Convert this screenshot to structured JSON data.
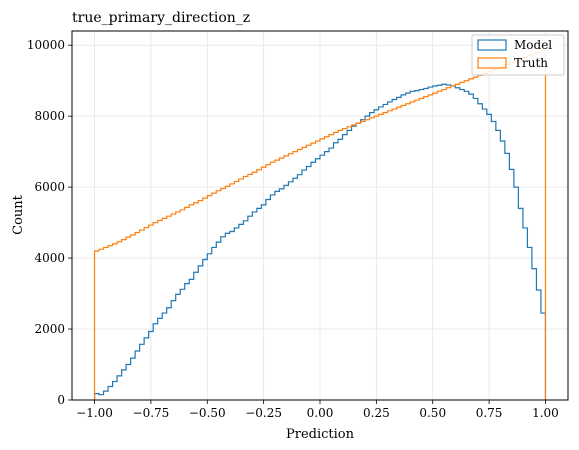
{
  "chart_data": {
    "type": "histogram",
    "title": "true_primary_direction_z",
    "xlabel": "Prediction",
    "ylabel": "Count",
    "xlim": [
      -1.1,
      1.1
    ],
    "ylim": [
      0,
      10400
    ],
    "grid": true,
    "legend_placement": "top-right",
    "x_ticks": [
      -1.0,
      -0.75,
      -0.5,
      -0.25,
      0.0,
      0.25,
      0.5,
      0.75,
      1.0
    ],
    "x_tick_labels": [
      "−1.00",
      "−0.75",
      "−0.50",
      "−0.25",
      "0.00",
      "0.25",
      "0.50",
      "0.75",
      "1.00"
    ],
    "y_ticks": [
      0,
      2000,
      4000,
      6000,
      8000,
      10000
    ],
    "y_tick_labels": [
      "0",
      "2000",
      "4000",
      "6000",
      "8000",
      "10000"
    ],
    "bin_edges_range": [
      -1.0,
      1.0
    ],
    "n_bins": 100,
    "series": [
      {
        "name": "Model",
        "color": "#1f77b4",
        "values": [
          180,
          150,
          250,
          380,
          520,
          680,
          850,
          1000,
          1180,
          1380,
          1570,
          1750,
          1930,
          2150,
          2300,
          2450,
          2600,
          2800,
          2980,
          3120,
          3280,
          3400,
          3600,
          3780,
          3960,
          4120,
          4300,
          4450,
          4600,
          4700,
          4750,
          4850,
          4950,
          5050,
          5180,
          5300,
          5400,
          5500,
          5650,
          5780,
          5880,
          5950,
          6050,
          6150,
          6250,
          6350,
          6480,
          6580,
          6700,
          6800,
          6900,
          7000,
          7100,
          7250,
          7350,
          7480,
          7600,
          7720,
          7800,
          7900,
          8000,
          8100,
          8180,
          8260,
          8330,
          8400,
          8470,
          8530,
          8600,
          8650,
          8700,
          8720,
          8750,
          8780,
          8820,
          8850,
          8870,
          8900,
          8880,
          8850,
          8800,
          8750,
          8700,
          8620,
          8500,
          8350,
          8200,
          8050,
          7850,
          7600,
          7300,
          6950,
          6500,
          6000,
          5400,
          4850,
          4300,
          3700,
          3100,
          2450
        ]
      },
      {
        "name": "Truth",
        "color": "#ff7f0e",
        "values": [
          4200,
          4250,
          4300,
          4350,
          4400,
          4460,
          4520,
          4590,
          4650,
          4720,
          4790,
          4860,
          4930,
          5000,
          5060,
          5120,
          5180,
          5240,
          5300,
          5360,
          5430,
          5500,
          5560,
          5620,
          5690,
          5760,
          5830,
          5900,
          5960,
          6020,
          6090,
          6160,
          6230,
          6300,
          6360,
          6420,
          6490,
          6560,
          6630,
          6700,
          6760,
          6820,
          6880,
          6940,
          7000,
          7060,
          7120,
          7180,
          7240,
          7300,
          7360,
          7420,
          7480,
          7540,
          7600,
          7650,
          7700,
          7750,
          7800,
          7850,
          7900,
          7950,
          8000,
          8050,
          8100,
          8150,
          8200,
          8250,
          8300,
          8350,
          8400,
          8450,
          8500,
          8550,
          8600,
          8650,
          8700,
          8750,
          8800,
          8850,
          8900,
          8950,
          9000,
          9050,
          9100,
          9150,
          9200,
          9250,
          9300,
          9350,
          9400,
          9450,
          9500,
          9550,
          9600,
          9650,
          9700,
          9750,
          9800,
          9850
        ]
      }
    ]
  }
}
